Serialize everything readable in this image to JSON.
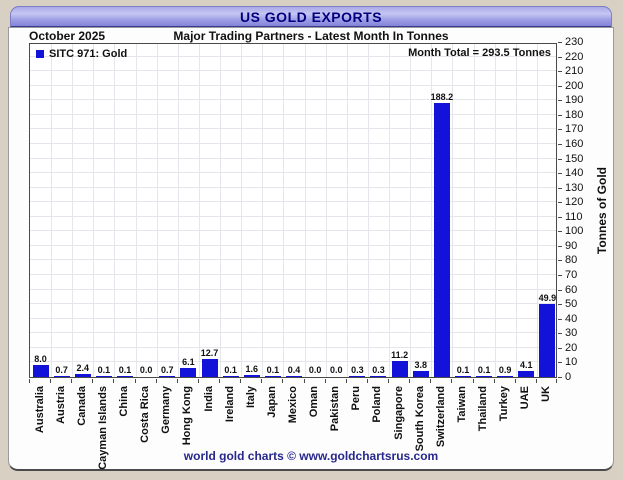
{
  "window": {
    "title": "US GOLD EXPORTS"
  },
  "header": {
    "period": "October 2025",
    "subtitle": "Major Trading Partners - Latest Month In Tonnes"
  },
  "legend": {
    "label": "SITC 971: Gold"
  },
  "annotation": {
    "month_total": "Month Total = 293.5 Tonnes"
  },
  "footer": {
    "credit": "world gold charts © www.goldchartsrus.com"
  },
  "colors": {
    "bar": "#1212d8",
    "title_text": "#00007e",
    "footer_text": "#28288c",
    "page_background": "#d8d1c3",
    "grid": "#e5e5ec"
  },
  "chart_data": {
    "type": "bar",
    "title": "US GOLD EXPORTS",
    "subtitle": "Major Trading Partners - Latest Month In Tonnes",
    "period": "October 2025",
    "series_name": "SITC 971: Gold",
    "month_total": 293.5,
    "categories": [
      "Australia",
      "Austria",
      "Canada",
      "Cayman Islands",
      "China",
      "Costa Rica",
      "Germany",
      "Hong Kong",
      "India",
      "Ireland",
      "Italy",
      "Japan",
      "Mexico",
      "Oman",
      "Pakistan",
      "Peru",
      "Poland",
      "Singapore",
      "South Korea",
      "Switzerland",
      "Taiwan",
      "Thailand",
      "Turkey",
      "UAE",
      "UK"
    ],
    "values": [
      8.0,
      0.7,
      2.4,
      0.1,
      0.1,
      0.0,
      0.7,
      6.1,
      12.7,
      0.1,
      1.6,
      0.1,
      0.4,
      0.0,
      0.0,
      0.3,
      0.3,
      11.2,
      3.8,
      188.2,
      0.1,
      0.1,
      0.9,
      4.1,
      49.9
    ],
    "xlabel": "",
    "ylabel": "Tonnes of Gold",
    "ylim": [
      0,
      230
    ],
    "ytick_step": 10,
    "grid": true,
    "legend_position": "top-left",
    "annotation_position": "top-right"
  }
}
